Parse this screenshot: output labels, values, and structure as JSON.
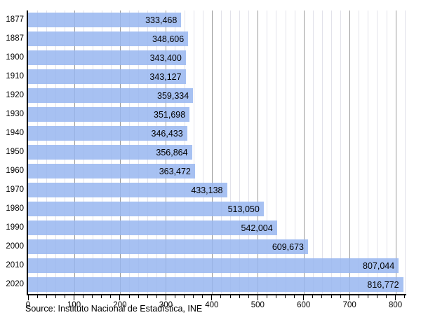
{
  "chart_data": {
    "type": "bar",
    "orientation": "horizontal",
    "title": "",
    "categories": [
      "1877",
      "1887",
      "1900",
      "1910",
      "1920",
      "1930",
      "1940",
      "1950",
      "1960",
      "1970",
      "1980",
      "1990",
      "2000",
      "2010",
      "2020"
    ],
    "values": [
      333468,
      348606,
      343400,
      343127,
      359334,
      351698,
      346433,
      356864,
      363472,
      433138,
      513050,
      542004,
      609673,
      807044,
      816772
    ],
    "value_labels": [
      "333,468",
      "348,606",
      "343,400",
      "343,127",
      "359,334",
      "351,698",
      "346,433",
      "356,864",
      "363,472",
      "433,138",
      "513,050",
      "542,004",
      "609,673",
      "807,044",
      "816,772"
    ],
    "x_tick_labels": [
      "0",
      "100",
      "200",
      "300",
      "400",
      "500",
      "600",
      "700",
      "800"
    ],
    "x_tick_values": [
      0,
      100,
      200,
      300,
      400,
      500,
      600,
      700,
      800
    ],
    "x_minor_step": 20,
    "xlim": [
      0,
      822
    ],
    "value_axis_divisor": 1000,
    "grid": "vertical minor and major gridlines, behind bars",
    "legend": "none",
    "source": "Source: Instituto Nacional de Estadística, INE",
    "colors": {
      "bar_perceived": "#aec6f2",
      "bar_fill": "rgba(152,182,240,0.85)",
      "grid_minor": "#e2e2ea",
      "grid_major": "#9a9a9a",
      "axis": "#000000",
      "text": "#000000",
      "background": "#ffffff"
    }
  }
}
